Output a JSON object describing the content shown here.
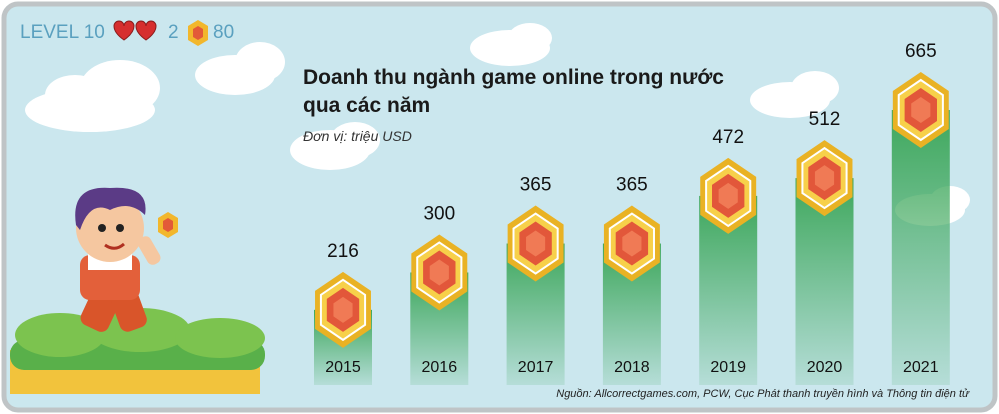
{
  "hud": {
    "level": "LEVEL 10",
    "lives": 2,
    "coins": 80
  },
  "chart_data": {
    "type": "bar",
    "title": "Doanh thu ngành game online trong nước qua các năm",
    "subtitle": "Đơn vị: triệu USD",
    "categories": [
      "2015",
      "2016",
      "2017",
      "2018",
      "2019",
      "2020",
      "2021"
    ],
    "values": [
      216,
      300,
      365,
      365,
      472,
      512,
      665
    ],
    "color": "#3da75b",
    "source": "Nguồn: Allcorrectgames.com, PCW, Cục Phát thanh truyền hình và Thông tin điện tử"
  }
}
